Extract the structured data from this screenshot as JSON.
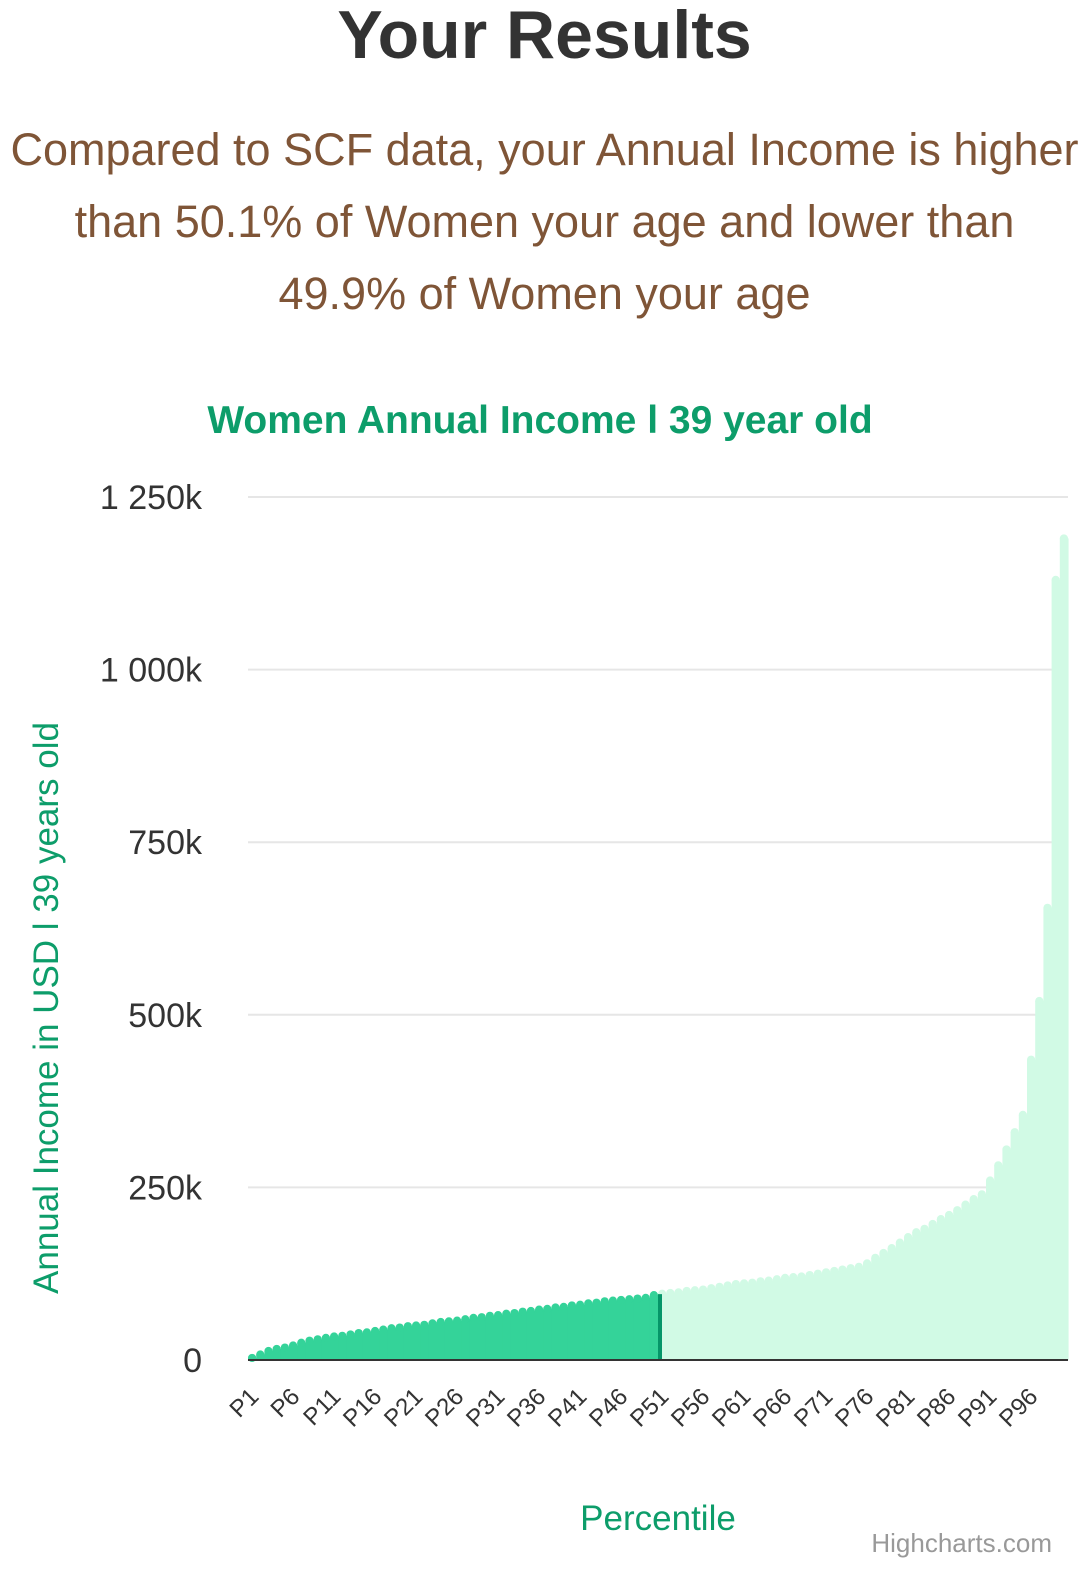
{
  "header": {
    "title": "Your Results",
    "summary": "Compared to SCF data, your Annual Income is higher than 50.1% of Women your age and lower than 49.9% of Women your age"
  },
  "colors": {
    "below": "#34d399",
    "above": "#d1fae5",
    "marker": "#059669",
    "accent": "#0d9d6a",
    "summary_text": "#7f5537"
  },
  "chart_data": {
    "type": "area",
    "title": "Women Annual Income l 39 year old",
    "xlabel": "Percentile",
    "ylabel": "Annual Income in USD l 39 years old",
    "ylim": [
      0,
      1250000
    ],
    "y_ticks": [
      0,
      250000,
      500000,
      750000,
      1000000,
      1250000
    ],
    "y_tick_labels": [
      "0",
      "250k",
      "500k",
      "750k",
      "1 000k",
      "1 250k"
    ],
    "x_tick_labels": [
      "P1",
      "P6",
      "P11",
      "P16",
      "P21",
      "P26",
      "P31",
      "P36",
      "P41",
      "P46",
      "P51",
      "P56",
      "P61",
      "P66",
      "P71",
      "P76",
      "P81",
      "P86",
      "P91",
      "P96"
    ],
    "highlight_percentile": 50,
    "grid": true,
    "legend": false,
    "credits": "Highcharts.com",
    "categories": [
      "P1",
      "P2",
      "P3",
      "P4",
      "P5",
      "P6",
      "P7",
      "P8",
      "P9",
      "P10",
      "P11",
      "P12",
      "P13",
      "P14",
      "P15",
      "P16",
      "P17",
      "P18",
      "P19",
      "P20",
      "P21",
      "P22",
      "P23",
      "P24",
      "P25",
      "P26",
      "P27",
      "P28",
      "P29",
      "P30",
      "P31",
      "P32",
      "P33",
      "P34",
      "P35",
      "P36",
      "P37",
      "P38",
      "P39",
      "P40",
      "P41",
      "P42",
      "P43",
      "P44",
      "P45",
      "P46",
      "P47",
      "P48",
      "P49",
      "P50",
      "P51",
      "P52",
      "P53",
      "P54",
      "P55",
      "P56",
      "P57",
      "P58",
      "P59",
      "P60",
      "P61",
      "P62",
      "P63",
      "P64",
      "P65",
      "P66",
      "P67",
      "P68",
      "P69",
      "P70",
      "P71",
      "P72",
      "P73",
      "P74",
      "P75",
      "P76",
      "P77",
      "P78",
      "P79",
      "P80",
      "P81",
      "P82",
      "P83",
      "P84",
      "P85",
      "P86",
      "P87",
      "P88",
      "P89",
      "P90",
      "P91",
      "P92",
      "P93",
      "P94",
      "P95",
      "P96",
      "P97",
      "P98",
      "P99",
      "P100"
    ],
    "values": [
      3000,
      8000,
      13000,
      16000,
      18000,
      21000,
      25000,
      28000,
      30000,
      32000,
      34000,
      35000,
      37000,
      39000,
      40000,
      42000,
      44000,
      46000,
      47000,
      49000,
      50000,
      51000,
      53000,
      55000,
      56000,
      57000,
      59000,
      61000,
      62000,
      64000,
      65000,
      67000,
      68000,
      70000,
      71000,
      73000,
      74000,
      76000,
      77000,
      79000,
      80000,
      82000,
      83000,
      85000,
      86000,
      87000,
      88000,
      89000,
      90000,
      94000,
      96000,
      97000,
      98000,
      100000,
      101000,
      102000,
      104000,
      106000,
      108000,
      110000,
      111000,
      112000,
      114000,
      115000,
      117000,
      119000,
      120000,
      121000,
      123000,
      125000,
      127000,
      129000,
      131000,
      133000,
      135000,
      140000,
      148000,
      155000,
      162000,
      170000,
      178000,
      185000,
      190000,
      197000,
      204000,
      210000,
      217000,
      225000,
      233000,
      240000,
      260000,
      282000,
      305000,
      330000,
      355000,
      435000,
      520000,
      655000,
      1130000,
      1190000
    ]
  }
}
